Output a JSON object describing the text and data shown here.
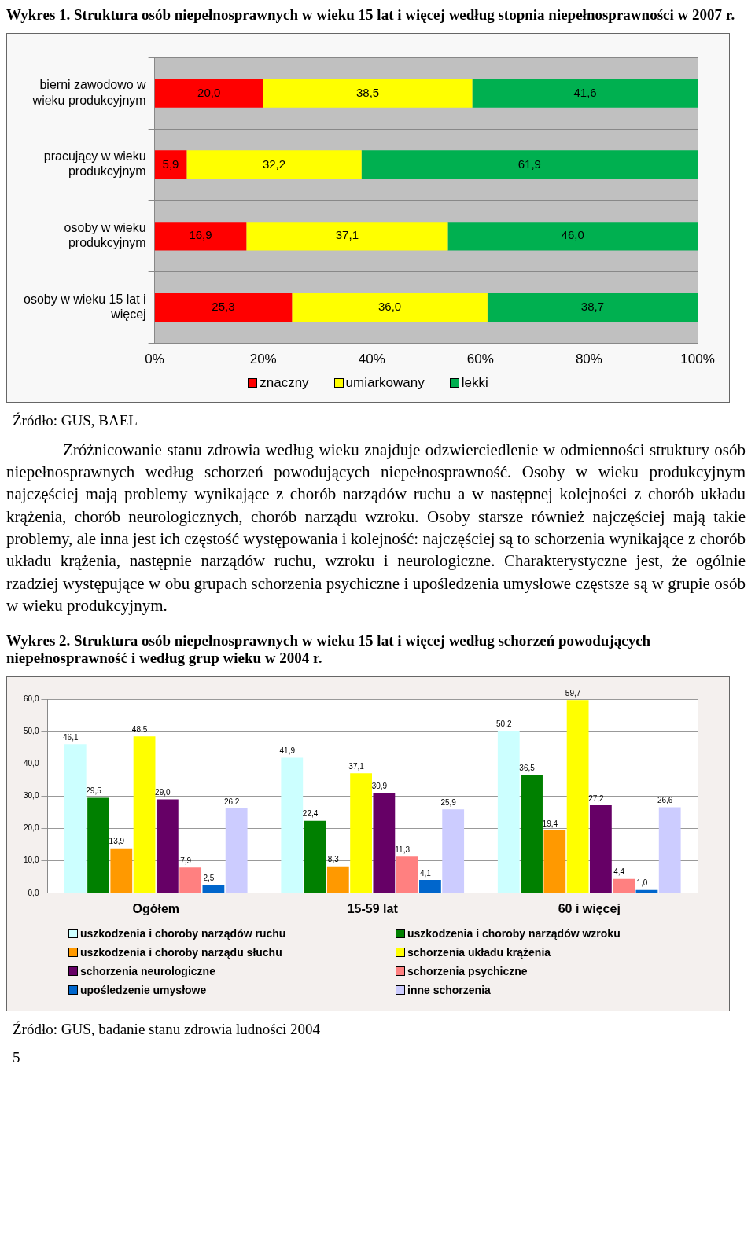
{
  "chart_data": [
    {
      "type": "bar",
      "orientation": "horizontal",
      "stacked": true,
      "title": "Wykres 1. Struktura osób niepełnosprawnych w wieku 15 lat i więcej według stopnia niepełnosprawności w 2007 r.",
      "categories": [
        "bierni zawodowo w wieku produkcyjnym",
        "pracujący w wieku produkcyjnym",
        "osoby w wieku produkcyjnym",
        "osoby w wieku 15 lat i więcej"
      ],
      "series": [
        {
          "name": "znaczny",
          "color": "#ff0000",
          "values": [
            20.0,
            5.9,
            16.9,
            25.3
          ],
          "value_labels": [
            "20,0",
            "5,9",
            "16,9",
            "25,3"
          ]
        },
        {
          "name": "umiarkowany",
          "color": "#ffff00",
          "values": [
            38.5,
            32.2,
            37.1,
            36.0
          ],
          "value_labels": [
            "38,5",
            "32,2",
            "37,1",
            "36,0"
          ]
        },
        {
          "name": "lekki",
          "color": "#00b050",
          "values": [
            41.6,
            61.9,
            46.0,
            38.7
          ],
          "value_labels": [
            "41,6",
            "61,9",
            "46,0",
            "38,7"
          ]
        }
      ],
      "xlim": [
        0,
        100
      ],
      "xticks": [
        {
          "value": 0,
          "label": "0%"
        },
        {
          "value": 20,
          "label": "20%"
        },
        {
          "value": 40,
          "label": "40%"
        },
        {
          "value": 60,
          "label": "60%"
        },
        {
          "value": 80,
          "label": "80%"
        },
        {
          "value": 100,
          "label": "100%"
        }
      ],
      "legend": "bottom",
      "annotations": [
        "Źródło: GUS, BAEL",
        "Zróżnicowanie stanu zdrowia według wieku znajduje odzwierciedlenie w odmienności struktury osób niepełnosprawnych według schorzeń powodujących niepełnosprawność. Osoby w wieku produkcyjnym najczęściej mają problemy wynikające z chorób narządów ruchu a w następnej kolejności z chorób układu krążenia, chorób neurologicznych, chorób narządu wzroku. Osoby starsze również najczęściej mają takie problemy, ale inna jest ich częstość występowania i kolejność: najczęściej są to schorzenia wynikające z chorób układu krążenia, następnie narządów ruchu, wzroku i neurologiczne. Charakterystyczne jest, że ogólnie rzadziej występujące w obu grupach schorzenia psychiczne i upośledzenia umysłowe częstsze są w grupie osób w wieku produkcyjnym."
      ]
    },
    {
      "type": "bar",
      "title": "Wykres 2. Struktura osób niepełnosprawnych w wieku 15 lat i więcej według schorzeń powodujących niepełnosprawność i według grup wieku w 2004 r.",
      "categories": [
        "Ogółem",
        "15-59 lat",
        "60 i więcej"
      ],
      "series": [
        {
          "name": "uszkodzenia i choroby narządów ruchu",
          "color": "#ccffff",
          "values": [
            46.1,
            41.9,
            50.2
          ],
          "value_labels": [
            "46,1",
            "41,9",
            "50,2"
          ]
        },
        {
          "name": "uszkodzenia i choroby narządów wzroku",
          "color": "#008000",
          "values": [
            29.5,
            22.4,
            36.5
          ],
          "value_labels": [
            "29,5",
            "22,4",
            "36,5"
          ]
        },
        {
          "name": "uszkodzenia i choroby narządu słuchu",
          "color": "#ff9900",
          "values": [
            13.9,
            8.3,
            19.4
          ],
          "value_labels": [
            "13,9",
            "8,3",
            "19,4"
          ]
        },
        {
          "name": "schorzenia układu krążenia",
          "color": "#ffff00",
          "values": [
            48.5,
            37.1,
            59.7
          ],
          "value_labels": [
            "48,5",
            "37,1",
            "59,7"
          ]
        },
        {
          "name": "schorzenia neurologiczne",
          "color": "#660066",
          "values": [
            29.0,
            30.9,
            27.2
          ],
          "value_labels": [
            "29,0",
            "30,9",
            "27,2"
          ]
        },
        {
          "name": "schorzenia psychiczne",
          "color": "#ff8080",
          "values": [
            7.9,
            11.3,
            4.4
          ],
          "value_labels": [
            "7,9",
            "11,3",
            "4,4"
          ]
        },
        {
          "name": "upośledzenie umysłowe",
          "color": "#0066cc",
          "values": [
            2.5,
            4.1,
            1.0
          ],
          "value_labels": [
            "2,5",
            "4,1",
            "1,0"
          ]
        },
        {
          "name": "inne schorzenia",
          "color": "#ccccff",
          "values": [
            26.2,
            25.9,
            26.6
          ],
          "value_labels": [
            "26,2",
            "25,9",
            "26,6"
          ]
        }
      ],
      "ylim": [
        0,
        60
      ],
      "yticks": [
        {
          "value": 0,
          "label": "0,0"
        },
        {
          "value": 10,
          "label": "10,0"
        },
        {
          "value": 20,
          "label": "20,0"
        },
        {
          "value": 30,
          "label": "30,0"
        },
        {
          "value": 40,
          "label": "40,0"
        },
        {
          "value": 50,
          "label": "50,0"
        },
        {
          "value": 60,
          "label": "60,0"
        }
      ],
      "grid": "y",
      "legend": "bottom",
      "annotations": [
        "Źródło: GUS, badanie stanu zdrowia ludności 2004",
        "5"
      ]
    }
  ]
}
